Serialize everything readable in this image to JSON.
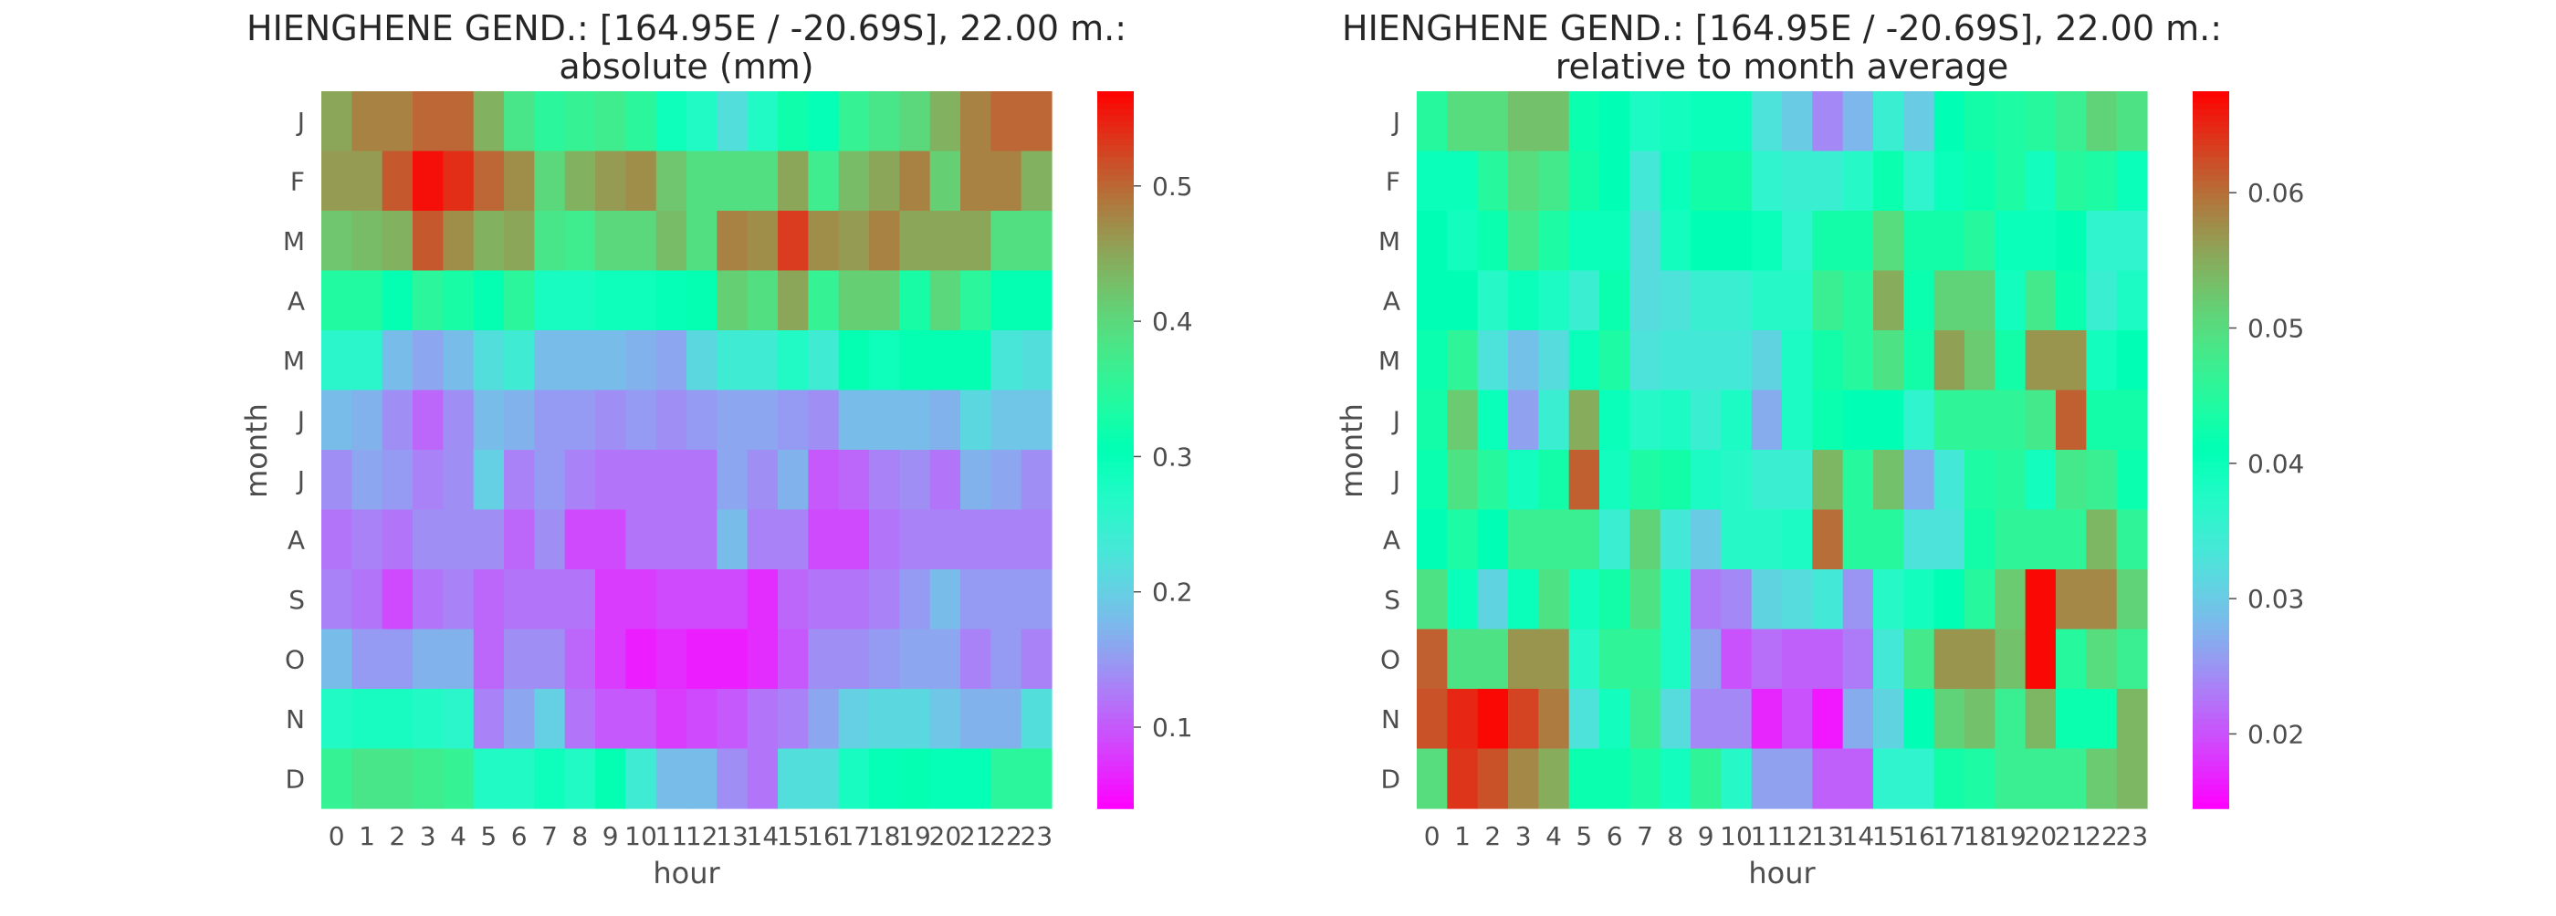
{
  "chart_data": [
    {
      "type": "heatmap",
      "title_line1": "HIENGHENE GEND.: [164.95E / -20.69S], 22.00 m.:",
      "title_line2": "absolute (mm)",
      "xlabel": "hour",
      "ylabel": "month",
      "x": [
        "0",
        "1",
        "2",
        "3",
        "4",
        "5",
        "6",
        "7",
        "8",
        "9",
        "10",
        "11",
        "12",
        "13",
        "14",
        "15",
        "16",
        "17",
        "18",
        "19",
        "20",
        "21",
        "22",
        "23"
      ],
      "y": [
        "J",
        "F",
        "M",
        "A",
        "M",
        "J",
        "J",
        "A",
        "S",
        "O",
        "N",
        "D"
      ],
      "colormap": "rainbow",
      "vmin": 0.04,
      "vmax": 0.57,
      "colorbar_ticks": [
        0.1,
        0.2,
        0.3,
        0.4,
        0.5
      ],
      "colorbar_tick_labels": [
        "0.1",
        "0.2",
        "0.3",
        "0.4",
        "0.5"
      ],
      "values": [
        [
          0.45,
          0.48,
          0.48,
          0.5,
          0.5,
          0.44,
          0.38,
          0.35,
          0.36,
          0.37,
          0.35,
          0.29,
          0.27,
          0.22,
          0.27,
          0.32,
          0.3,
          0.36,
          0.38,
          0.4,
          0.44,
          0.48,
          0.5,
          0.5
        ],
        [
          0.46,
          0.46,
          0.51,
          0.56,
          0.54,
          0.5,
          0.47,
          0.4,
          0.44,
          0.46,
          0.47,
          0.42,
          0.39,
          0.39,
          0.39,
          0.45,
          0.37,
          0.43,
          0.45,
          0.48,
          0.41,
          0.48,
          0.48,
          0.44
        ],
        [
          0.42,
          0.43,
          0.44,
          0.51,
          0.47,
          0.44,
          0.45,
          0.38,
          0.37,
          0.4,
          0.4,
          0.43,
          0.39,
          0.48,
          0.47,
          0.53,
          0.47,
          0.46,
          0.48,
          0.45,
          0.45,
          0.45,
          0.39,
          0.39
        ],
        [
          0.34,
          0.34,
          0.31,
          0.35,
          0.33,
          0.31,
          0.35,
          0.28,
          0.28,
          0.29,
          0.29,
          0.3,
          0.31,
          0.41,
          0.39,
          0.45,
          0.36,
          0.41,
          0.41,
          0.33,
          0.4,
          0.35,
          0.31,
          0.31
        ],
        [
          0.26,
          0.26,
          0.18,
          0.16,
          0.18,
          0.22,
          0.24,
          0.18,
          0.18,
          0.18,
          0.17,
          0.16,
          0.21,
          0.24,
          0.24,
          0.27,
          0.24,
          0.31,
          0.29,
          0.31,
          0.31,
          0.31,
          0.23,
          0.22
        ],
        [
          0.18,
          0.17,
          0.14,
          0.11,
          0.14,
          0.18,
          0.17,
          0.15,
          0.15,
          0.14,
          0.15,
          0.14,
          0.15,
          0.16,
          0.16,
          0.15,
          0.14,
          0.18,
          0.18,
          0.18,
          0.17,
          0.21,
          0.19,
          0.19
        ],
        [
          0.14,
          0.16,
          0.15,
          0.13,
          0.14,
          0.2,
          0.13,
          0.15,
          0.13,
          0.12,
          0.12,
          0.12,
          0.12,
          0.16,
          0.14,
          0.17,
          0.1,
          0.11,
          0.13,
          0.14,
          0.12,
          0.17,
          0.16,
          0.14
        ],
        [
          0.12,
          0.13,
          0.12,
          0.14,
          0.14,
          0.14,
          0.11,
          0.14,
          0.09,
          0.09,
          0.12,
          0.12,
          0.12,
          0.18,
          0.13,
          0.13,
          0.09,
          0.09,
          0.12,
          0.13,
          0.13,
          0.13,
          0.13,
          0.13
        ],
        [
          0.13,
          0.12,
          0.09,
          0.12,
          0.13,
          0.11,
          0.12,
          0.12,
          0.12,
          0.08,
          0.08,
          0.09,
          0.09,
          0.09,
          0.07,
          0.11,
          0.12,
          0.12,
          0.13,
          0.15,
          0.18,
          0.15,
          0.15,
          0.15
        ],
        [
          0.18,
          0.15,
          0.15,
          0.17,
          0.17,
          0.11,
          0.14,
          0.14,
          0.11,
          0.08,
          0.06,
          0.07,
          0.06,
          0.06,
          0.07,
          0.1,
          0.14,
          0.14,
          0.15,
          0.16,
          0.16,
          0.13,
          0.15,
          0.13
        ],
        [
          0.27,
          0.28,
          0.28,
          0.27,
          0.26,
          0.13,
          0.16,
          0.2,
          0.12,
          0.1,
          0.1,
          0.08,
          0.09,
          0.1,
          0.12,
          0.13,
          0.16,
          0.2,
          0.21,
          0.21,
          0.19,
          0.17,
          0.17,
          0.22
        ],
        [
          0.36,
          0.38,
          0.38,
          0.37,
          0.36,
          0.27,
          0.27,
          0.29,
          0.27,
          0.31,
          0.24,
          0.18,
          0.18,
          0.14,
          0.12,
          0.22,
          0.22,
          0.28,
          0.3,
          0.31,
          0.3,
          0.3,
          0.35,
          0.35
        ]
      ]
    },
    {
      "type": "heatmap",
      "title_line1": "HIENGHENE GEND.: [164.95E / -20.69S], 22.00 m.:",
      "title_line2": "relative to month average",
      "xlabel": "hour",
      "ylabel": "month",
      "x": [
        "0",
        "1",
        "2",
        "3",
        "4",
        "5",
        "6",
        "7",
        "8",
        "9",
        "10",
        "11",
        "12",
        "13",
        "14",
        "15",
        "16",
        "17",
        "18",
        "19",
        "20",
        "21",
        "22",
        "23"
      ],
      "y": [
        "J",
        "F",
        "M",
        "A",
        "M",
        "J",
        "J",
        "A",
        "S",
        "O",
        "N",
        "D"
      ],
      "colormap": "rainbow",
      "vmin": 0.0145,
      "vmax": 0.0675,
      "colorbar_ticks": [
        0.02,
        0.03,
        0.04,
        0.05,
        0.06
      ],
      "colorbar_tick_labels": [
        "0.02",
        "0.03",
        "0.04",
        "0.05",
        "0.06"
      ],
      "values": [
        [
          0.045,
          0.05,
          0.05,
          0.053,
          0.053,
          0.042,
          0.041,
          0.038,
          0.039,
          0.04,
          0.04,
          0.033,
          0.03,
          0.024,
          0.028,
          0.035,
          0.03,
          0.041,
          0.043,
          0.044,
          0.045,
          0.047,
          0.051,
          0.049
        ],
        [
          0.04,
          0.04,
          0.045,
          0.05,
          0.048,
          0.043,
          0.041,
          0.034,
          0.04,
          0.043,
          0.043,
          0.036,
          0.035,
          0.035,
          0.037,
          0.042,
          0.036,
          0.04,
          0.042,
          0.044,
          0.039,
          0.045,
          0.044,
          0.04
        ],
        [
          0.041,
          0.039,
          0.042,
          0.048,
          0.044,
          0.04,
          0.04,
          0.032,
          0.039,
          0.041,
          0.041,
          0.04,
          0.036,
          0.043,
          0.043,
          0.05,
          0.043,
          0.043,
          0.045,
          0.04,
          0.04,
          0.041,
          0.036,
          0.036
        ],
        [
          0.041,
          0.041,
          0.037,
          0.04,
          0.038,
          0.035,
          0.042,
          0.032,
          0.033,
          0.035,
          0.035,
          0.037,
          0.037,
          0.047,
          0.045,
          0.055,
          0.042,
          0.051,
          0.051,
          0.039,
          0.048,
          0.042,
          0.035,
          0.038
        ],
        [
          0.042,
          0.046,
          0.033,
          0.029,
          0.032,
          0.04,
          0.044,
          0.033,
          0.034,
          0.034,
          0.034,
          0.031,
          0.038,
          0.043,
          0.045,
          0.049,
          0.043,
          0.056,
          0.052,
          0.043,
          0.057,
          0.057,
          0.039,
          0.041
        ],
        [
          0.043,
          0.052,
          0.04,
          0.026,
          0.035,
          0.055,
          0.04,
          0.037,
          0.038,
          0.035,
          0.038,
          0.027,
          0.038,
          0.042,
          0.041,
          0.041,
          0.036,
          0.046,
          0.046,
          0.046,
          0.048,
          0.061,
          0.043,
          0.043
        ],
        [
          0.042,
          0.049,
          0.045,
          0.039,
          0.043,
          0.061,
          0.039,
          0.044,
          0.043,
          0.038,
          0.037,
          0.035,
          0.035,
          0.054,
          0.045,
          0.053,
          0.027,
          0.034,
          0.044,
          0.045,
          0.039,
          0.048,
          0.047,
          0.042
        ],
        [
          0.041,
          0.044,
          0.041,
          0.047,
          0.047,
          0.047,
          0.035,
          0.051,
          0.034,
          0.03,
          0.037,
          0.037,
          0.038,
          0.06,
          0.045,
          0.045,
          0.033,
          0.033,
          0.043,
          0.046,
          0.046,
          0.046,
          0.054,
          0.046
        ],
        [
          0.049,
          0.04,
          0.031,
          0.04,
          0.049,
          0.039,
          0.043,
          0.049,
          0.038,
          0.023,
          0.024,
          0.031,
          0.032,
          0.034,
          0.025,
          0.037,
          0.039,
          0.041,
          0.045,
          0.052,
          0.067,
          0.058,
          0.058,
          0.051
        ],
        [
          0.061,
          0.049,
          0.049,
          0.057,
          0.057,
          0.037,
          0.046,
          0.046,
          0.038,
          0.026,
          0.02,
          0.022,
          0.021,
          0.021,
          0.023,
          0.034,
          0.048,
          0.057,
          0.057,
          0.053,
          0.067,
          0.045,
          0.05,
          0.047
        ],
        [
          0.062,
          0.065,
          0.067,
          0.063,
          0.059,
          0.033,
          0.039,
          0.047,
          0.032,
          0.024,
          0.024,
          0.017,
          0.02,
          0.016,
          0.027,
          0.031,
          0.041,
          0.051,
          0.053,
          0.047,
          0.054,
          0.042,
          0.042,
          0.054
        ],
        [
          0.05,
          0.064,
          0.062,
          0.058,
          0.055,
          0.042,
          0.042,
          0.044,
          0.039,
          0.046,
          0.037,
          0.026,
          0.026,
          0.021,
          0.021,
          0.036,
          0.036,
          0.043,
          0.044,
          0.047,
          0.047,
          0.047,
          0.052,
          0.054
        ]
      ]
    }
  ]
}
